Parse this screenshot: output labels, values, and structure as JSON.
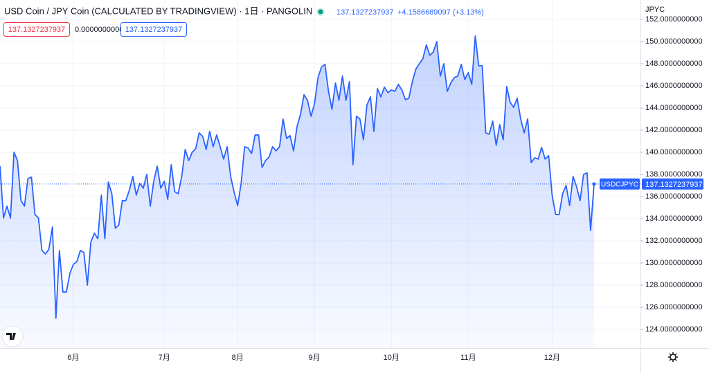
{
  "chart_data": {
    "type": "area",
    "title": "USD Coin / JPY Coin (CALCULATED BY TRADINGVIEW) · 1日 · PANGOLIN",
    "change": "+4.1586689097 (+3.13%)",
    "legend_values": [
      "137.1327237937",
      "0.0000000000",
      "137.1327237937"
    ],
    "series_name": "USDCJPYC",
    "y_label": "JPYC",
    "color": "#2962ff",
    "values": [
      138.75,
      134.06,
      135.13,
      134.06,
      140,
      139.25,
      135.63,
      135.13,
      137.63,
      137.75,
      134.38,
      134.06,
      131.13,
      130.81,
      131.25,
      133.25,
      125,
      131.13,
      127.38,
      127.38,
      129.06,
      129.88,
      130.13,
      131.13,
      130.94,
      128,
      131.88,
      132.69,
      132.19,
      136.13,
      132.19,
      137.31,
      136.25,
      133.13,
      133.44,
      135.63,
      135.63,
      136.56,
      137.81,
      136.13,
      137.19,
      136.75,
      138,
      135.13,
      137.38,
      138.75,
      136.75,
      137.38,
      135.75,
      138.88,
      136.44,
      136.25,
      137.81,
      140.25,
      139.25,
      140,
      140.31,
      141.75,
      141.44,
      140.25,
      141.88,
      140.5,
      141.56,
      140.5,
      139.38,
      140.5,
      137.81,
      136.38,
      135.19,
      137.19,
      140.5,
      140.38,
      139.88,
      141.56,
      141.56,
      138.63,
      139.25,
      139.56,
      140.5,
      140.13,
      140.5,
      143,
      141.25,
      141.5,
      140.13,
      142.31,
      143.44,
      145.19,
      144.69,
      143.25,
      144.38,
      146.75,
      147.69,
      147.94,
      145.5,
      143.88,
      146.25,
      144.69,
      146.88,
      144.69,
      146.38,
      138.88,
      143.25,
      143,
      141.13,
      144.25,
      145,
      141.88,
      145.75,
      145,
      145.88,
      145.38,
      145.63,
      145.5,
      146.13,
      145.63,
      144.75,
      144.88,
      146.38,
      147.5,
      148,
      148.44,
      149.69,
      148.75,
      149.06,
      150,
      146.88,
      148,
      145.5,
      146.25,
      146.75,
      146.88,
      147.94,
      146.56,
      147.19,
      146.13,
      150.5,
      147.81,
      147.81,
      141.75,
      141.63,
      142.81,
      140.63,
      142.5,
      141.13,
      145.94,
      144.5,
      144.06,
      144.88,
      143,
      141.75,
      143,
      139.06,
      139.5,
      139.38,
      140.44,
      139.38,
      139.69,
      136.13,
      134.38,
      134.38,
      136.25,
      137,
      135.19,
      137.81,
      136.88,
      135.63,
      138,
      138.13,
      132.94,
      137.1327237937
    ],
    "xticks": [
      {
        "value": 21,
        "label": "6月"
      },
      {
        "value": 47,
        "label": "7月"
      },
      {
        "value": 68,
        "label": "8月"
      },
      {
        "value": 90,
        "label": "9月"
      },
      {
        "value": 112,
        "label": "10月"
      },
      {
        "value": 134,
        "label": "11月"
      },
      {
        "value": 158,
        "label": "12月"
      }
    ],
    "ylim": [
      122,
      153.75
    ],
    "yticks": [
      {
        "value": 124,
        "label": "124.0000000000"
      },
      {
        "value": 126,
        "label": "126.0000000000"
      },
      {
        "value": 128,
        "label": "128.0000000000"
      },
      {
        "value": 130,
        "label": "130.0000000000"
      },
      {
        "value": 132,
        "label": "132.0000000000"
      },
      {
        "value": 134,
        "label": "134.0000000000"
      },
      {
        "value": 136,
        "label": "136.0000000000"
      },
      {
        "value": 138,
        "label": "138.0000000000"
      },
      {
        "value": 140,
        "label": "140.0000000000"
      },
      {
        "value": 142,
        "label": "142.0000000000"
      },
      {
        "value": 144,
        "label": "144.0000000000"
      },
      {
        "value": 146,
        "label": "146.0000000000"
      },
      {
        "value": 148,
        "label": "148.0000000000"
      },
      {
        "value": 150,
        "label": "150.0000000000"
      },
      {
        "value": 152,
        "label": "152.0000000000"
      }
    ],
    "grid": true
  }
}
